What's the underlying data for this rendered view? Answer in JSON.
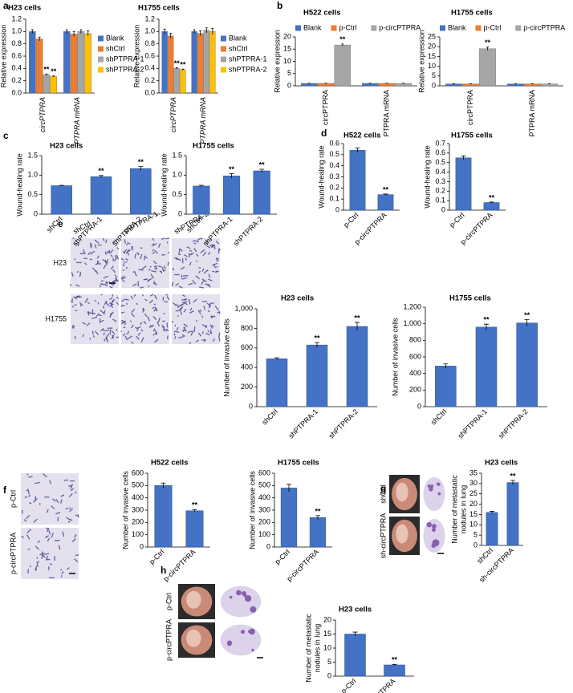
{
  "panels": [
    "a",
    "b",
    "c",
    "d",
    "e",
    "f",
    "g",
    "h"
  ],
  "images": {
    "e": {
      "columns": [
        "shCtrl",
        "shPTPRA-1",
        "shPTPRA-2"
      ],
      "rows": [
        "H23",
        "H1755"
      ]
    },
    "f": {
      "rows": [
        "p-Ctrl",
        "p-circPTPRA"
      ]
    },
    "g": {
      "rows": [
        "shCtrl",
        "sh-circPTPRA"
      ]
    },
    "h": {
      "rows": [
        "p-Ctrl",
        "p-circPTPRA"
      ]
    }
  },
  "chart_data": [
    {
      "type": "grouped-bar",
      "title": "H23 cells",
      "ylabel": "Relative expression",
      "categories": [
        "circPTPRA",
        "PTPRA mRNA"
      ],
      "series": [
        {
          "name": "Blank",
          "color": "#4472c4",
          "values": [
            1.0,
            1.0
          ],
          "errors": [
            0.03,
            0.03
          ]
        },
        {
          "name": "shCtrl",
          "color": "#ed7d31",
          "values": [
            0.88,
            0.96
          ],
          "errors": [
            0.03,
            0.04
          ]
        },
        {
          "name": "shPTPRA-1",
          "color": "#a5a5a5",
          "values": [
            0.3,
            1.0
          ],
          "errors": [
            0.01,
            0.03
          ]
        },
        {
          "name": "shPTPRA-2",
          "color": "#ffc000",
          "values": [
            0.27,
            0.97
          ],
          "errors": [
            0.01,
            0.04
          ]
        }
      ],
      "ylim": [
        0,
        1.2
      ],
      "yticks": [
        {
          "value": 0,
          "label": "0.0"
        },
        0.2,
        0.4,
        0.6,
        0.8,
        {
          "value": 1,
          "label": "1.0"
        },
        1.2
      ],
      "legend": "right",
      "annotations": [
        {
          "text": "**",
          "series": 2,
          "index": 0
        },
        {
          "text": "**",
          "series": 3,
          "index": 0
        }
      ]
    },
    {
      "type": "grouped-bar",
      "title": "H1755 cells",
      "ylabel": "Relative expression",
      "categories": [
        "circPTPRA",
        "PTPRA mRNA"
      ],
      "series": [
        {
          "name": "Blank",
          "color": "#4472c4",
          "values": [
            1.0,
            1.0
          ],
          "errors": [
            0.04,
            0.03
          ]
        },
        {
          "name": "shCtrl",
          "color": "#ed7d31",
          "values": [
            0.93,
            0.97
          ],
          "errors": [
            0.04,
            0.04
          ]
        },
        {
          "name": "shPTPRA-1",
          "color": "#a5a5a5",
          "values": [
            0.4,
            1.02
          ],
          "errors": [
            0.01,
            0.04
          ]
        },
        {
          "name": "shPTPRA-2",
          "color": "#ffc000",
          "values": [
            0.38,
            1.0
          ],
          "errors": [
            0.01,
            0.05
          ]
        }
      ],
      "ylim": [
        0,
        1.2
      ],
      "yticks": [
        {
          "value": 0,
          "label": "0.0"
        },
        0.2,
        0.4,
        0.6,
        0.8,
        {
          "value": 1,
          "label": "1.0"
        },
        1.2
      ],
      "legend": "right",
      "annotations": [
        {
          "text": "**",
          "series": 2,
          "index": 0
        },
        {
          "text": "**",
          "series": 3,
          "index": 0
        }
      ]
    },
    {
      "type": "grouped-bar",
      "title": "H522 cells",
      "ylabel": "Relative expression",
      "categories": [
        "circPTPRA",
        "PTPRA mRNA"
      ],
      "series": [
        {
          "name": "Blank",
          "color": "#4472c4",
          "values": [
            1,
            1
          ],
          "errors": [
            0.05,
            0.05
          ]
        },
        {
          "name": "p-Ctrl",
          "color": "#ed7d31",
          "values": [
            1,
            1
          ],
          "errors": [
            0.05,
            0.05
          ]
        },
        {
          "name": "p-circPTPRA",
          "color": "#a5a5a5",
          "values": [
            16.7,
            1
          ],
          "errors": [
            0.4,
            0.05
          ]
        }
      ],
      "ylim": [
        0,
        20
      ],
      "yticks": [
        0,
        5,
        10,
        15,
        20
      ],
      "legend": "top",
      "annotations": [
        {
          "text": "**",
          "series": 2,
          "index": 0
        }
      ]
    },
    {
      "type": "grouped-bar",
      "title": "H1755 cells",
      "ylabel": "Relative expression",
      "categories": [
        "circPTPRA",
        "PTPRA mRNA"
      ],
      "series": [
        {
          "name": "Blank",
          "color": "#4472c4",
          "values": [
            1,
            1
          ],
          "errors": [
            0.05,
            0.05
          ]
        },
        {
          "name": "p-Ctrl",
          "color": "#ed7d31",
          "values": [
            1,
            1
          ],
          "errors": [
            0.05,
            0.05
          ]
        },
        {
          "name": "p-circPTPRA",
          "color": "#a5a5a5",
          "values": [
            19,
            1
          ],
          "errors": [
            0.8,
            0.05
          ]
        }
      ],
      "ylim": [
        0,
        25
      ],
      "yticks": [
        0,
        5,
        10,
        15,
        20,
        25
      ],
      "legend": "top",
      "annotations": [
        {
          "text": "**",
          "series": 2,
          "index": 0
        }
      ]
    },
    {
      "type": "bar",
      "title": "H23 cells",
      "ylabel": "Wound-healing rate",
      "categories": [
        "shCtrl",
        "shPTPRA-1",
        "shPTPRA-2"
      ],
      "values": [
        0.73,
        0.96,
        1.17
      ],
      "errors": [
        0.01,
        0.03,
        0.05
      ],
      "color": "#4472c4",
      "ylim": [
        0,
        1.5
      ],
      "yticks": [
        0,
        0.5,
        {
          "value": 1,
          "label": "1.0"
        },
        1.5
      ],
      "annotations": [
        {
          "text": "**",
          "index": 1
        },
        {
          "text": "**",
          "index": 2
        }
      ]
    },
    {
      "type": "bar",
      "title": "H1755 cells",
      "ylabel": "Wound-healing rate",
      "categories": [
        "shCtrl",
        "shPTPRA-1",
        "shPTPRA-2"
      ],
      "values": [
        0.72,
        0.98,
        1.11
      ],
      "errors": [
        0.02,
        0.06,
        0.04
      ],
      "color": "#4472c4",
      "ylim": [
        0,
        1.5
      ],
      "yticks": [
        0,
        0.5,
        {
          "value": 1,
          "label": "1.0"
        },
        1.5
      ],
      "annotations": [
        {
          "text": "**",
          "index": 1
        },
        {
          "text": "**",
          "index": 2
        }
      ]
    },
    {
      "type": "bar",
      "title": "H522 cells",
      "ylabel": "Wound-healing rate",
      "categories": [
        "p-Ctrl",
        "p-circPTPRA"
      ],
      "values": [
        0.54,
        0.14
      ],
      "errors": [
        0.02,
        0.005
      ],
      "color": "#4472c4",
      "ylim": [
        0,
        0.6
      ],
      "yticks": [
        0,
        0.1,
        0.2,
        0.3,
        0.4,
        0.5,
        0.6
      ],
      "annotations": [
        {
          "text": "**",
          "index": 1
        }
      ]
    },
    {
      "type": "bar",
      "title": "H1755 cells",
      "ylabel": "Wound-healing rate",
      "categories": [
        "p-Ctrl",
        "p-circPTPRA"
      ],
      "values": [
        0.55,
        0.08
      ],
      "errors": [
        0.02,
        0.005
      ],
      "color": "#4472c4",
      "ylim": [
        0,
        0.7
      ],
      "yticks": [
        0,
        0.1,
        0.2,
        0.3,
        0.4,
        0.5,
        0.6,
        0.7
      ],
      "annotations": [
        {
          "text": "**",
          "index": 1
        }
      ]
    },
    {
      "type": "bar",
      "title": "H23 cells",
      "ylabel": "Number of invasive cells",
      "categories": [
        "shCtrl",
        "shPTPRA-1",
        "shPTPRA-2"
      ],
      "values": [
        490,
        630,
        820
      ],
      "errors": [
        10,
        25,
        40
      ],
      "color": "#4472c4",
      "ylim": [
        0,
        1000
      ],
      "yticks": [
        0,
        200,
        400,
        600,
        800,
        {
          "value": 1000,
          "label": "1,000"
        }
      ],
      "annotations": [
        {
          "text": "**",
          "index": 1
        },
        {
          "text": "**",
          "index": 2
        }
      ]
    },
    {
      "type": "bar",
      "title": "H1755 cells",
      "ylabel": "Number of invasive cells",
      "categories": [
        "shCtrl",
        "shPTPRA-1",
        "shPTPRA-2"
      ],
      "values": [
        490,
        960,
        1010
      ],
      "errors": [
        25,
        35,
        40
      ],
      "color": "#4472c4",
      "ylim": [
        0,
        1200
      ],
      "yticks": [
        0,
        200,
        400,
        600,
        800,
        {
          "value": 1000,
          "label": "1,000"
        },
        {
          "value": 1200,
          "label": "1,200"
        }
      ],
      "annotations": [
        {
          "text": "**",
          "index": 1
        },
        {
          "text": "**",
          "index": 2
        }
      ]
    },
    {
      "type": "bar",
      "title": "H522 cells",
      "ylabel": "Number of invasive cells",
      "categories": [
        "p-Ctrl",
        "p-circPTPRA"
      ],
      "values": [
        500,
        295
      ],
      "errors": [
        20,
        10
      ],
      "color": "#4472c4",
      "ylim": [
        0,
        600
      ],
      "yticks": [
        0,
        100,
        200,
        300,
        400,
        500,
        600
      ],
      "annotations": [
        {
          "text": "**",
          "index": 1
        }
      ]
    },
    {
      "type": "bar",
      "title": "H1755 cells",
      "ylabel": "Number of invasive cells",
      "categories": [
        "p-Ctrl",
        "p-circPTPRA"
      ],
      "values": [
        480,
        240
      ],
      "errors": [
        30,
        15
      ],
      "color": "#4472c4",
      "ylim": [
        0,
        600
      ],
      "yticks": [
        0,
        100,
        200,
        300,
        400,
        500,
        600
      ],
      "annotations": [
        {
          "text": "**",
          "index": 1
        }
      ]
    },
    {
      "type": "bar",
      "title": "H23 cells",
      "ylabel": [
        "Number of metastatic",
        "nodules in lung"
      ],
      "categories": [
        "shCtrl",
        "sh-circPTPRA"
      ],
      "values": [
        16,
        30.5
      ],
      "errors": [
        0.5,
        1
      ],
      "color": "#4472c4",
      "ylim": [
        0,
        35
      ],
      "yticks": [
        0,
        5,
        10,
        15,
        20,
        25,
        30,
        35
      ],
      "annotations": [
        {
          "text": "**",
          "index": 1
        }
      ]
    },
    {
      "type": "bar",
      "title": "H23 cells",
      "ylabel": [
        "Number of metastatic",
        "nodules in lung"
      ],
      "categories": [
        "p-Ctrl",
        "p-circPTPRA"
      ],
      "values": [
        15,
        4
      ],
      "errors": [
        0.7,
        0.2
      ],
      "color": "#4472c4",
      "ylim": [
        0,
        20
      ],
      "yticks": [
        0,
        5,
        10,
        15,
        20
      ],
      "annotations": [
        {
          "text": "**",
          "index": 1
        }
      ]
    }
  ]
}
